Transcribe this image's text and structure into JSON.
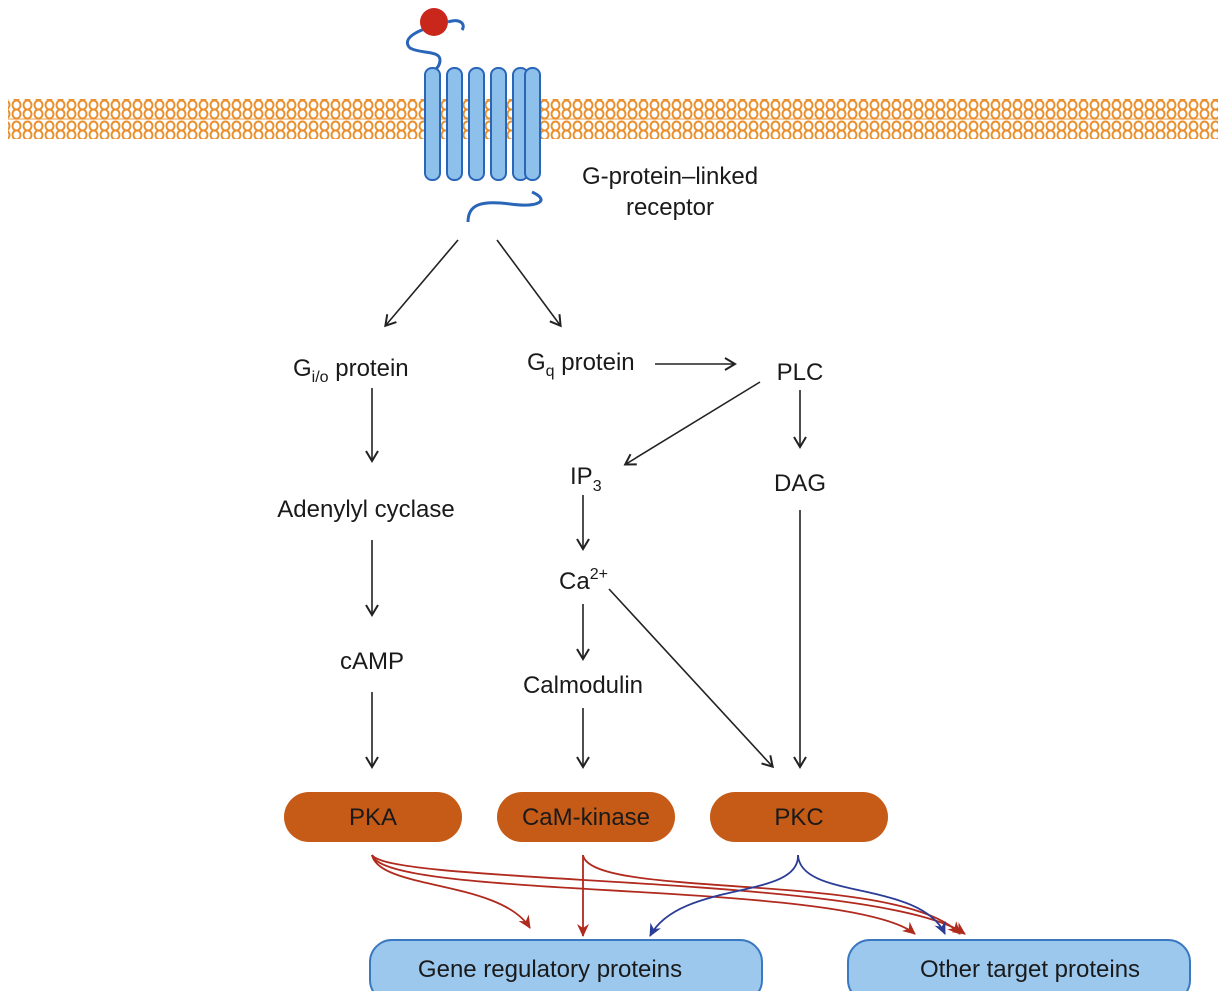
{
  "receptor": {
    "label_line1": "G-protein–linked",
    "label_line2": "receptor"
  },
  "nodes": {
    "gio": {
      "main": "G",
      "sub": "i/o",
      "rest": " protein"
    },
    "gq": {
      "main": "G",
      "sub": "q",
      "rest": " protein"
    },
    "plc": "PLC",
    "adenylyl": "Adenylyl cyclase",
    "ip3": {
      "main": "IP",
      "sub": "3"
    },
    "dag": "DAG",
    "ca": {
      "main": "Ca",
      "sup": "2+"
    },
    "camp": "cAMP",
    "calmodulin": "Calmodulin"
  },
  "kinases": {
    "pka": "PKA",
    "camk": "CaM-kinase",
    "pkc": "PKC"
  },
  "targets": {
    "gene": "Gene regulatory proteins",
    "other": "Other target proteins"
  },
  "colors": {
    "membrane": "#e8902e",
    "receptor_fill": "#8ec0ec",
    "receptor_stroke": "#2a66b8",
    "ligand": "#c9261c",
    "kinase_fill": "#c65a17",
    "target_fill": "#9cc8ee",
    "target_stroke": "#3a78c0",
    "arrow_black": "#222222",
    "arrow_red": "#b02a1e",
    "arrow_blue": "#2b3c96"
  }
}
